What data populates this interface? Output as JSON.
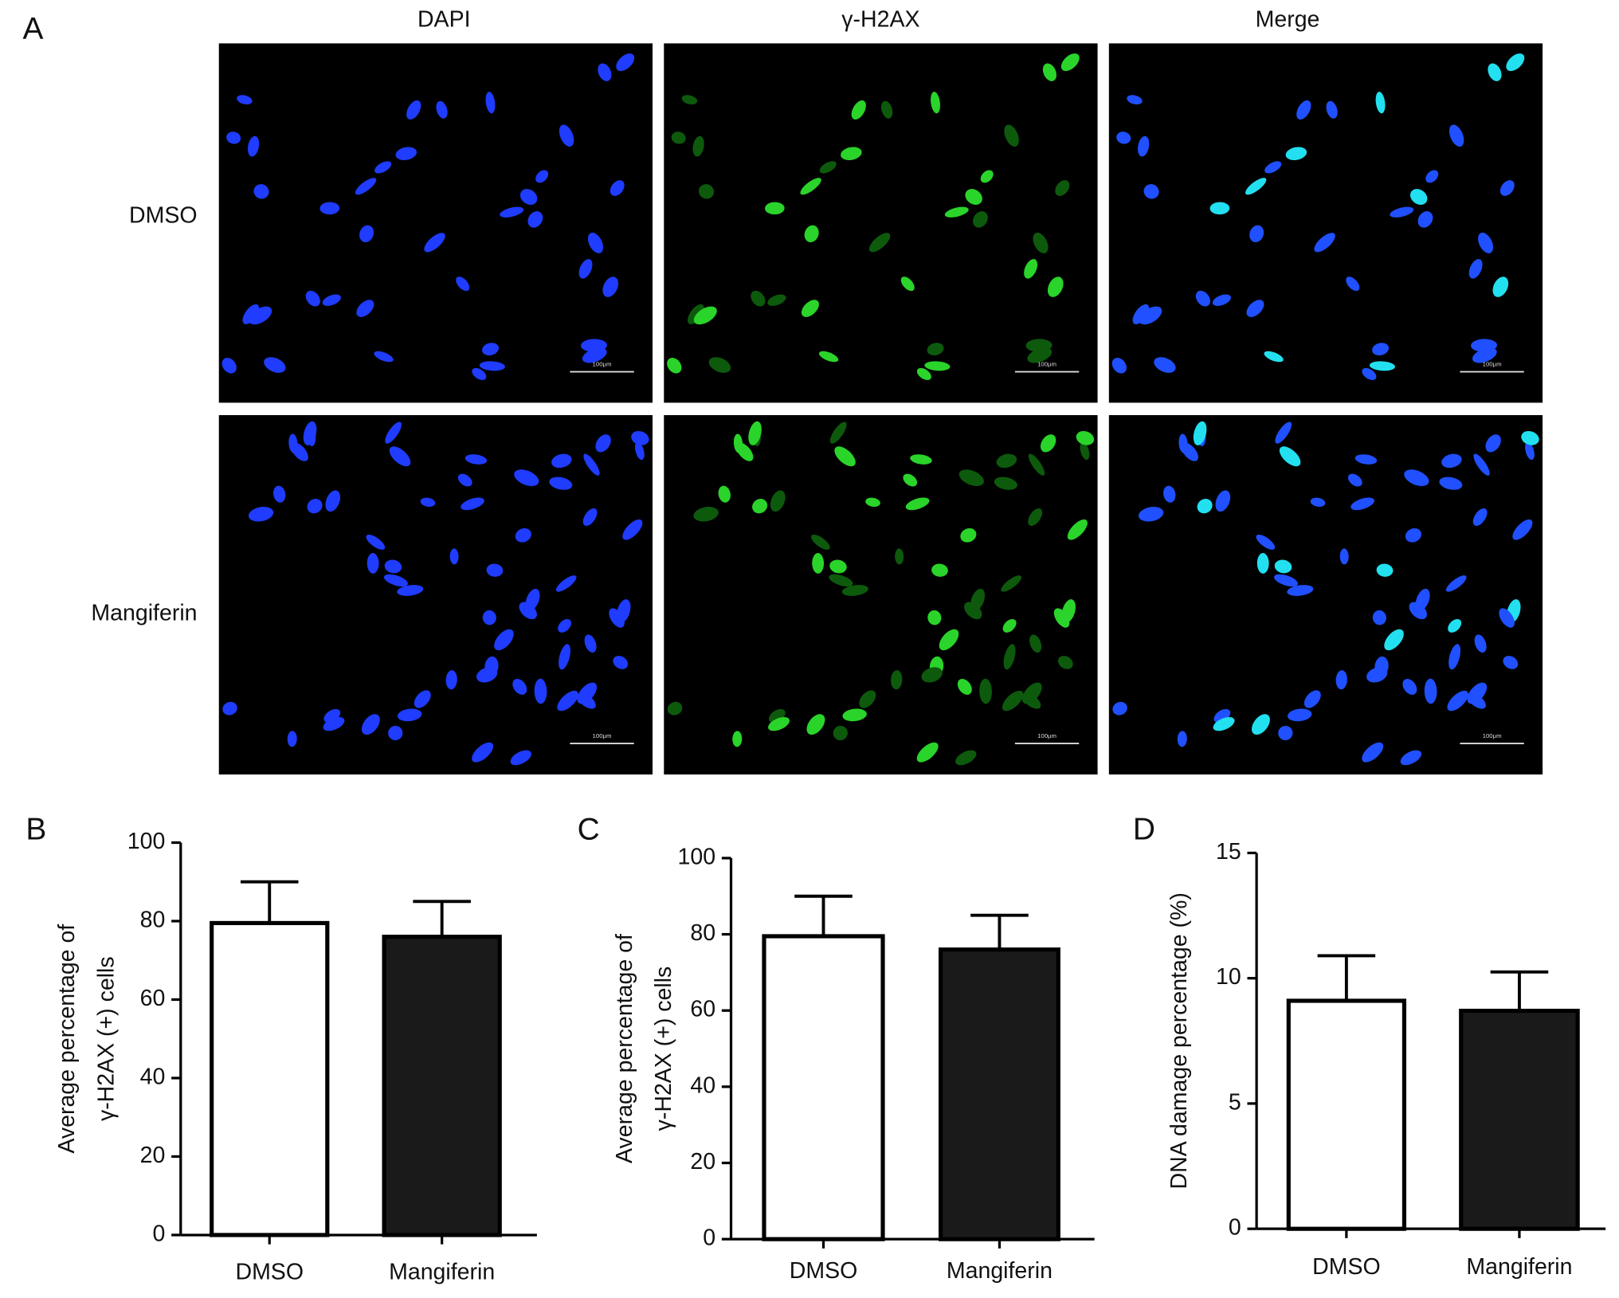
{
  "panel_a": {
    "label": "A",
    "columns": [
      "DAPI",
      "γ-H2AX",
      "Merge"
    ],
    "rows": [
      "DMSO",
      "Mangiferin"
    ],
    "scale_bar": "100μm"
  },
  "chart_data": [
    {
      "type": "bar",
      "panel": "B",
      "y_label": [
        "Average percentage of",
        "γ-H2AX (+) cells"
      ],
      "categories": [
        "DMSO",
        "Mangiferin"
      ],
      "values": [
        79.5,
        76
      ],
      "errors": [
        10.5,
        9
      ],
      "colors": [
        "#ffffff",
        "#1a1a1a"
      ],
      "ylim": [
        0,
        100
      ],
      "yticks": [
        0,
        20,
        40,
        60,
        80,
        100
      ]
    },
    {
      "type": "bar",
      "panel": "C",
      "y_label": [
        "Average percentage of",
        "γ-H2AX (+) cells"
      ],
      "categories": [
        "DMSO",
        "Mangiferin"
      ],
      "values": [
        79.5,
        76
      ],
      "errors": [
        10.5,
        9
      ],
      "colors": [
        "#ffffff",
        "#1a1a1a"
      ],
      "ylim": [
        0,
        100
      ],
      "yticks": [
        0,
        20,
        40,
        60,
        80,
        100
      ]
    },
    {
      "type": "bar",
      "panel": "D",
      "y_label": [
        "DNA damage percentage (%)"
      ],
      "categories": [
        "DMSO",
        "Mangiferin"
      ],
      "values": [
        9.1,
        8.7
      ],
      "errors": [
        1.8,
        1.55
      ],
      "colors": [
        "#ffffff",
        "#1a1a1a"
      ],
      "ylim": [
        0,
        15
      ],
      "yticks": [
        0,
        5,
        10,
        15
      ]
    }
  ]
}
